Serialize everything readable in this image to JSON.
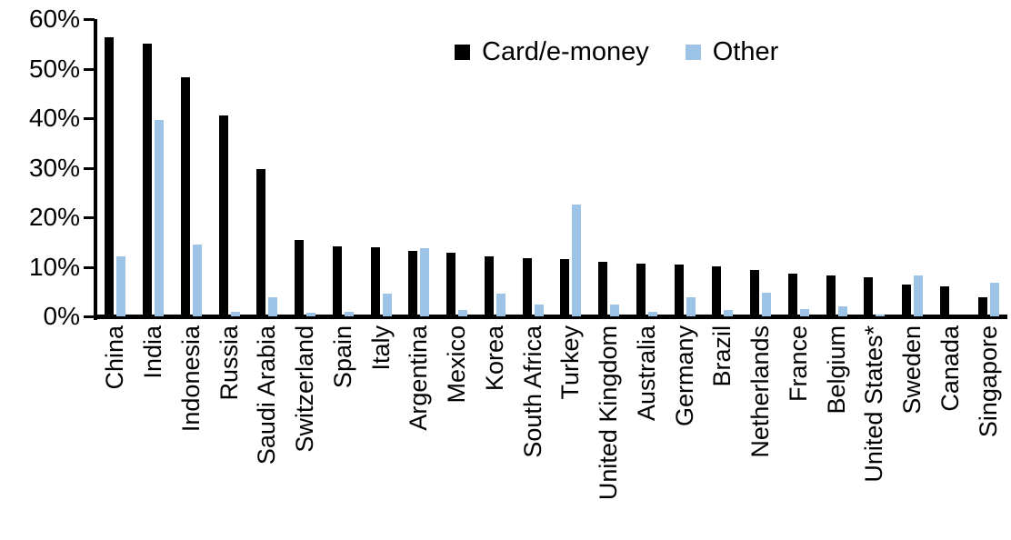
{
  "chart_data": {
    "type": "bar",
    "title": "",
    "categories": [
      "China",
      "India",
      "Indonesia",
      "Russia",
      "Saudi Arabia",
      "Switzerland",
      "Spain",
      "Italy",
      "Argentina",
      "Mexico",
      "Korea",
      "South Africa",
      "Turkey",
      "United Kingdom",
      "Australia",
      "Germany",
      "Brazil",
      "Netherlands",
      "France",
      "Belgium",
      "United States*",
      "Sweden",
      "Canada",
      "Singapore"
    ],
    "series": [
      {
        "name": "Card/e-money",
        "color": "#000000",
        "values": [
          56.3,
          55.0,
          48.2,
          40.5,
          29.8,
          15.5,
          14.1,
          14.0,
          13.3,
          12.9,
          12.2,
          11.7,
          11.6,
          11.0,
          10.7,
          10.5,
          10.0,
          9.3,
          8.7,
          8.2,
          7.9,
          6.5,
          6.0,
          3.9
        ]
      },
      {
        "name": "Other",
        "color": "#9DC3E6",
        "values": [
          12.2,
          39.7,
          14.5,
          1.0,
          3.8,
          0.7,
          1.0,
          4.5,
          13.8,
          1.2,
          4.6,
          2.3,
          22.5,
          2.3,
          1.0,
          3.9,
          1.2,
          4.8,
          1.5,
          2.0,
          0.3,
          8.2,
          0.0,
          6.7
        ]
      }
    ],
    "xlabel": "",
    "ylabel": "",
    "ylim": [
      0,
      60
    ],
    "yticks": [
      "0%",
      "10%",
      "20%",
      "30%",
      "40%",
      "50%",
      "60%"
    ],
    "ytick_values": [
      0,
      10,
      20,
      30,
      40,
      50,
      60
    ],
    "grid": false,
    "legend_position": "top-center"
  }
}
